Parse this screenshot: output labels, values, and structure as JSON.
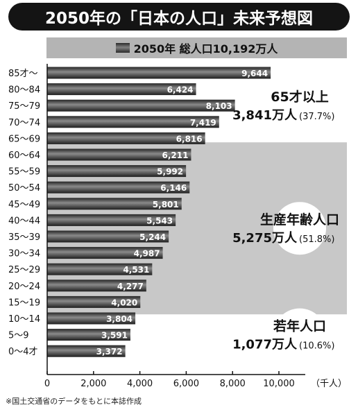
{
  "title": "2050年の「日本の人口」未来予想図",
  "subtitle": "2050年 総人口10,192万人",
  "footnote": "※国土交通省のデータをもとに本誌作成",
  "chart_data": {
    "type": "bar",
    "orientation": "horizontal",
    "categories": [
      "85才〜",
      "80〜84",
      "75〜79",
      "70〜74",
      "65〜69",
      "60〜64",
      "55〜59",
      "50〜54",
      "45〜49",
      "40〜44",
      "35〜39",
      "30〜34",
      "25〜29",
      "20〜24",
      "15〜19",
      "10〜14",
      "5〜9",
      "0〜4才"
    ],
    "values": [
      9644,
      6424,
      8103,
      7419,
      6816,
      6211,
      5992,
      6146,
      5801,
      5543,
      5244,
      4987,
      4531,
      4277,
      4020,
      3804,
      3591,
      3372
    ],
    "data_labels": [
      "9,644",
      "6,424",
      "8,103",
      "7,419",
      "6,816",
      "6,211",
      "5,992",
      "6,146",
      "5,801",
      "5,543",
      "5,244",
      "4,987",
      "4,531",
      "4,277",
      "4,020",
      "3,804",
      "3,591",
      "3,372"
    ],
    "xlim": [
      0,
      12000
    ],
    "xticks": [
      0,
      2000,
      4000,
      6000,
      8000,
      10000
    ],
    "xtick_labels": [
      "0",
      "2,000",
      "4,000",
      "6,000",
      "8,000",
      "10,000"
    ],
    "xlabel": "（千人）",
    "groups": [
      {
        "name": "65才以上",
        "total": "3,841万人",
        "pct": "(37.7%)",
        "start": 0,
        "end": 4,
        "shaded": false
      },
      {
        "name": "生産年齢人口",
        "total": "5,275万人",
        "pct": "(51.8%)",
        "start": 5,
        "end": 14,
        "shaded": true
      },
      {
        "name": "若年人口",
        "total": "1,077万人",
        "pct": "(10.6%)",
        "start": 15,
        "end": 17,
        "shaded": false
      }
    ],
    "colors": {
      "bar_dark": "#262626",
      "bar_mid": "#8a8a8a",
      "band": "#c8c8c8",
      "axis": "#111111"
    }
  }
}
